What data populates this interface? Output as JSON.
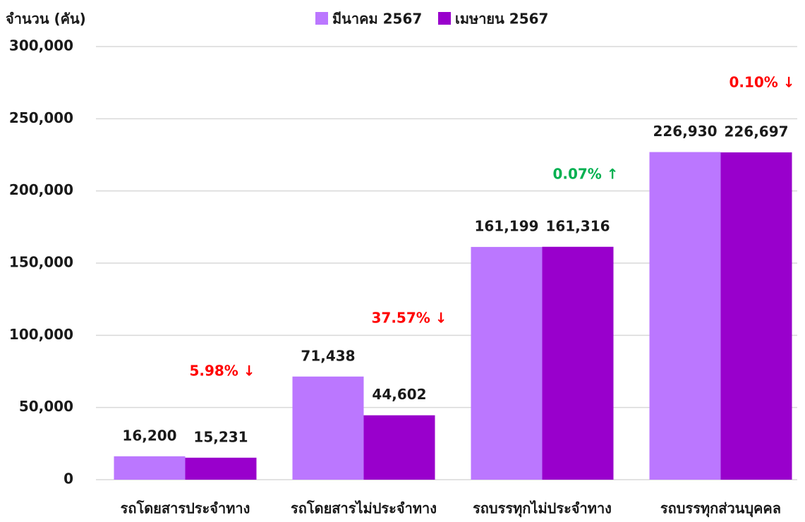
{
  "chart_data": {
    "type": "bar",
    "y_axis_title": "จำนวน (คัน)",
    "categories": [
      "รถโดยสารประจำทาง",
      "รถโดยสารไม่ประจำทาง",
      "รถบรรทุกไม่ประจำทาง",
      "รถบรรทุกส่วนบุคคล"
    ],
    "series": [
      {
        "name": "มีนาคม 2567",
        "color": "#bb77ff",
        "values": [
          16200,
          71438,
          161199,
          226930
        ],
        "value_labels": [
          "16,200",
          "71,438",
          "161,199",
          "226,930"
        ]
      },
      {
        "name": "เมษายน 2567",
        "color": "#9900cc",
        "values": [
          15231,
          44602,
          161316,
          226697
        ],
        "value_labels": [
          "15,231",
          "44,602",
          "161,316",
          "226,697"
        ]
      }
    ],
    "annotations": [
      {
        "text": "5.98% ↓",
        "color": "#ff0000"
      },
      {
        "text": "37.57% ↓",
        "color": "#ff0000"
      },
      {
        "text": "0.07% ↑",
        "color": "#00b050"
      },
      {
        "text": "0.10% ↓",
        "color": "#ff0000"
      }
    ],
    "ylim": [
      0,
      300000
    ],
    "yticks": [
      0,
      {
        "value": 50000,
        "label": "50,000"
      },
      {
        "value": 100000,
        "label": "100,000"
      },
      {
        "value": 150000,
        "label": "150,000"
      },
      {
        "value": 200000,
        "label": "200,000"
      },
      {
        "value": 250000,
        "label": "250,000"
      },
      {
        "value": 300000,
        "label": "300,000"
      }
    ],
    "grid": true,
    "legend": "top"
  }
}
